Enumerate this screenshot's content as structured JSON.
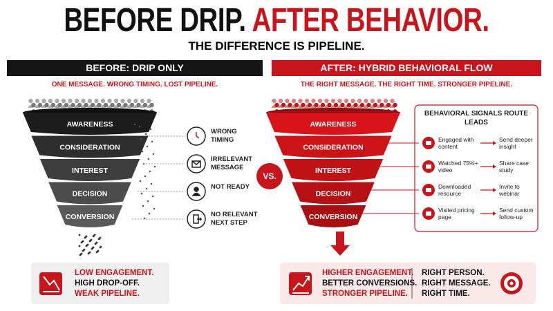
{
  "header": {
    "title_before": "BEFORE DRIP.",
    "title_after": "AFTER BEHAVIOR.",
    "subtitle": "THE DIFFERENCE IS PIPELINE."
  },
  "before": {
    "heading": "BEFORE: DRIP ONLY",
    "tagline": "ONE MESSAGE. WRONG TIMING. LOST PIPELINE.",
    "stages": [
      "AWARENESS",
      "CONSIDERATION",
      "INTEREST",
      "DECISION",
      "CONVERSION"
    ],
    "problems": [
      "WRONG TIMING",
      "IRRELEVANT MESSAGE",
      "NOT READY",
      "NO RELEVANT NEXT STEP"
    ],
    "summary": [
      "LOW ENGAGEMENT.",
      "HIGH DROP-OFF.",
      "WEAK PIPELINE."
    ]
  },
  "vs": "VS.",
  "after": {
    "heading": "AFTER: HYBRID BEHAVIORAL FLOW",
    "tagline": "THE RIGHT MESSAGE. THE RIGHT TIME. STRONGER PIPELINE.",
    "stages": [
      "AWARENESS",
      "CONSIDERATION",
      "INTEREST",
      "DECISION",
      "CONVERSION"
    ],
    "signals_title": "BEHAVIORAL SIGNALS ROUTE LEADS",
    "signals": [
      {
        "signal": "Engaged with content",
        "action": "Send deeper insight"
      },
      {
        "signal": "Watched 75%+ video",
        "action": "Share case study"
      },
      {
        "signal": "Downloaded resource",
        "action": "Invite to webinar"
      },
      {
        "signal": "Visited pricing page",
        "action": "Send custom follow-up"
      }
    ],
    "summary_left": [
      "HIGHER ENGAGEMENT.",
      "BETTER CONVERSIONS.",
      "STRONGER PIPELINE."
    ],
    "summary_right": [
      "RIGHT PERSON.",
      "RIGHT MESSAGE.",
      "RIGHT TIME."
    ]
  }
}
